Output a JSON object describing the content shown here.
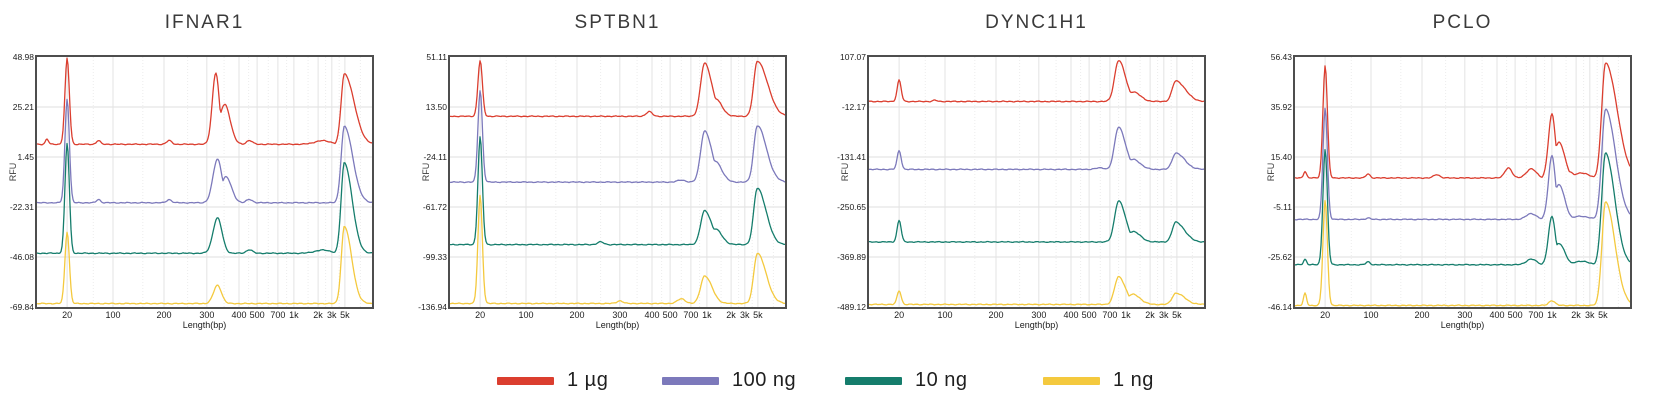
{
  "figure_background": "#ffffff",
  "legend": {
    "items": [
      {
        "label": "1 µg",
        "color": "#DB3E2F"
      },
      {
        "label": "100 ng",
        "color": "#7C79BB"
      },
      {
        "label": "10 ng",
        "color": "#157D6C"
      },
      {
        "label": "1 ng",
        "color": "#F4C93E"
      }
    ]
  },
  "x_axis": {
    "label": "Length(bp)",
    "tick_labels": [
      "20",
      "100",
      "200",
      "300",
      "400",
      "500",
      "700",
      "1k",
      "2k",
      "3k",
      "5k"
    ],
    "tick_bp": [
      20,
      100,
      200,
      300,
      400,
      500,
      700,
      1000,
      2000,
      3000,
      5000
    ],
    "scale_points": [
      [
        13,
        0
      ],
      [
        20,
        0.09
      ],
      [
        100,
        0.227
      ],
      [
        200,
        0.379
      ],
      [
        300,
        0.507
      ],
      [
        400,
        0.603
      ],
      [
        500,
        0.657
      ],
      [
        700,
        0.719
      ],
      [
        1000,
        0.767
      ],
      [
        2000,
        0.839
      ],
      [
        3000,
        0.88
      ],
      [
        5000,
        0.919
      ],
      [
        9000,
        1.0
      ]
    ],
    "minor_grid_bp": [
      50,
      150,
      250,
      350,
      450,
      600,
      850,
      1500,
      2500,
      4000,
      7000
    ]
  },
  "y_axis": {
    "label": "RFU"
  },
  "chart_data": [
    {
      "type": "line",
      "title": "IFNAR1",
      "xlabel": "Length(bp)",
      "ylabel": "RFU",
      "y_ticks": [
        48.98,
        25.21,
        1.45,
        -22.31,
        -46.08,
        -69.84
      ],
      "series": [
        {
          "name": "1 µg",
          "color": "#DB3E2F",
          "baseline": 7.5,
          "peaks_bp_rfu_sigma_tail": [
            [
              15,
              10,
              1.5
            ],
            [
              20,
              48.3,
              2.2
            ],
            [
              60,
              9.3,
              2
            ],
            [
              210,
              9.3,
              2.5
            ],
            [
              325,
              41.5,
              3.5
            ],
            [
              352,
              26.5,
              5.5
            ],
            [
              455,
              9.3,
              3
            ],
            [
              2300,
              9.2,
              8
            ],
            [
              4900,
              41,
              3.2,
              3
            ]
          ]
        },
        {
          "name": "100 ng",
          "color": "#7C79BB",
          "baseline": -20.3,
          "peaks_bp_rfu_sigma_tail": [
            [
              20,
              29,
              2.2
            ],
            [
              60,
              -18.7,
              2
            ],
            [
              210,
              -18.8,
              2.5
            ],
            [
              330,
              0.5,
              4.5
            ],
            [
              356,
              -8,
              5.5
            ],
            [
              455,
              -18.7,
              3
            ],
            [
              4900,
              16,
              3.2,
              2.6
            ]
          ]
        },
        {
          "name": "10 ng",
          "color": "#157D6C",
          "baseline": -44.3,
          "peaks_bp_rfu_sigma_tail": [
            [
              20,
              8,
              2.2
            ],
            [
              330,
              -27.5,
              4.5
            ],
            [
              455,
              -42.6,
              3
            ],
            [
              2300,
              -42.8,
              8
            ],
            [
              4900,
              -1.2,
              3.2,
              2.4
            ]
          ]
        },
        {
          "name": "1 ng",
          "color": "#F4C93E",
          "baseline": -68.2,
          "peaks_bp_rfu_sigma_tail": [
            [
              20,
              -34,
              2.2
            ],
            [
              330,
              -59.5,
              4
            ],
            [
              4900,
              -31.5,
              3,
              2.4
            ]
          ]
        }
      ]
    },
    {
      "type": "line",
      "title": "SPTBN1",
      "xlabel": "Length(bp)",
      "ylabel": "RFU",
      "y_ticks": [
        51.11,
        13.5,
        -24.11,
        -61.72,
        -99.33,
        -136.94
      ],
      "series": [
        {
          "name": "1 µg",
          "color": "#DB3E2F",
          "baseline": 6.5,
          "peaks_bp_rfu_sigma_tail": [
            [
              20,
              48.5,
              2.2
            ],
            [
              390,
              10,
              3
            ],
            [
              950,
              46.5,
              4,
              1.8
            ],
            [
              1260,
              20,
              6.5
            ],
            [
              4900,
              48,
              3.6,
              2.8
            ]
          ]
        },
        {
          "name": "100 ng",
          "color": "#7C79BB",
          "baseline": -43,
          "peaks_bp_rfu_sigma_tail": [
            [
              20,
              26,
              2.2
            ],
            [
              600,
              -41.5,
              4
            ],
            [
              950,
              -4.5,
              4,
              1.8
            ],
            [
              1260,
              -27,
              6.5
            ],
            [
              4900,
              -0.5,
              3.6,
              2.5
            ]
          ]
        },
        {
          "name": "10 ng",
          "color": "#157D6C",
          "baseline": -90,
          "peaks_bp_rfu_sigma_tail": [
            [
              20,
              -9,
              2.2
            ],
            [
              250,
              -88,
              3
            ],
            [
              950,
              -64.5,
              4,
              1.8
            ],
            [
              1260,
              -78,
              6.5
            ],
            [
              4900,
              -47.5,
              3.6,
              2.4
            ]
          ]
        },
        {
          "name": "1 ng",
          "color": "#F4C93E",
          "baseline": -134.3,
          "peaks_bp_rfu_sigma_tail": [
            [
              20,
              -53,
              2.2
            ],
            [
              300,
              -132.3,
              3
            ],
            [
              600,
              -130.8,
              4
            ],
            [
              950,
              -113.5,
              4,
              1.8
            ],
            [
              4900,
              -96.5,
              3.6,
              2.4
            ]
          ]
        }
      ]
    },
    {
      "type": "line",
      "title": "DYNC1H1",
      "xlabel": "Length(bp)",
      "ylabel": "RFU",
      "y_ticks": [
        107.07,
        -12.17,
        -131.41,
        -250.65,
        -369.89,
        -489.12
      ],
      "series": [
        {
          "name": "1 µg",
          "color": "#DB3E2F",
          "baseline": 1,
          "peaks_bp_rfu_sigma_tail": [
            [
              20,
              52,
              2
            ],
            [
              70,
              4,
              2
            ],
            [
              850,
              99,
              4,
              1.7
            ],
            [
              1230,
              24,
              7
            ],
            [
              4800,
              50,
              3.6,
              2.6
            ]
          ]
        },
        {
          "name": "100 ng",
          "color": "#7C79BB",
          "baseline": -161,
          "peaks_bp_rfu_sigma_tail": [
            [
              20,
              -116,
              2
            ],
            [
              600,
              -157.5,
              5
            ],
            [
              850,
              -60,
              4,
              1.7
            ],
            [
              1230,
              -137,
              7
            ],
            [
              4800,
              -122,
              3.6,
              2.4
            ]
          ]
        },
        {
          "name": "10 ng",
          "color": "#157D6C",
          "baseline": -334,
          "peaks_bp_rfu_sigma_tail": [
            [
              20,
              -282,
              2
            ],
            [
              850,
              -236,
              4,
              1.7
            ],
            [
              1230,
              -309,
              7
            ],
            [
              4800,
              -287,
              3.6,
              2.4
            ]
          ]
        },
        {
          "name": "1 ng",
          "color": "#F4C93E",
          "baseline": -483,
          "peaks_bp_rfu_sigma_tail": [
            [
              20,
              -450,
              2
            ],
            [
              850,
              -417,
              4,
              1.7
            ],
            [
              1230,
              -459,
              7
            ],
            [
              4800,
              -456,
              3.6,
              2.4
            ]
          ]
        }
      ]
    },
    {
      "type": "line",
      "title": "PCLO",
      "xlabel": "Length(bp)",
      "ylabel": "RFU",
      "y_ticks": [
        56.43,
        35.92,
        15.4,
        -5.11,
        -25.62,
        -46.14
      ],
      "series": [
        {
          "name": "1 µg",
          "color": "#DB3E2F",
          "baseline": 6.8,
          "peaks_bp_rfu_sigma_tail": [
            [
              15,
              9.5,
              1.5
            ],
            [
              20,
              53,
              2.2
            ],
            [
              90,
              8.5,
              2
            ],
            [
              230,
              8.2,
              3
            ],
            [
              460,
              11,
              3.5
            ],
            [
              650,
              10.5,
              5
            ],
            [
              1000,
              33,
              3.5
            ],
            [
              1230,
              21.5,
              5.5
            ],
            [
              1600,
              9.5,
              5
            ],
            [
              2300,
              8.8,
              8
            ],
            [
              5300,
              54,
              3.8,
              3
            ]
          ]
        },
        {
          "name": "100 ng",
          "color": "#7C79BB",
          "baseline": -10.2,
          "peaks_bp_rfu_sigma_tail": [
            [
              20,
              35.5,
              2.2
            ],
            [
              90,
              -9.6,
              2
            ],
            [
              650,
              -7.8,
              5
            ],
            [
              1000,
              16,
              3.5
            ],
            [
              1230,
              4,
              5.5
            ],
            [
              2300,
              -8.9,
              8
            ],
            [
              5300,
              35,
              3.8,
              2.6
            ]
          ]
        },
        {
          "name": "10 ng",
          "color": "#157D6C",
          "baseline": -28.8,
          "peaks_bp_rfu_sigma_tail": [
            [
              15,
              -26.5,
              1.5
            ],
            [
              20,
              18.5,
              2.2
            ],
            [
              90,
              -27.6,
              2
            ],
            [
              650,
              -26.5,
              5
            ],
            [
              1000,
              -9,
              3.5
            ],
            [
              1230,
              -20,
              5.5
            ],
            [
              2300,
              -27.4,
              8
            ],
            [
              5300,
              17,
              3.8,
              2.4
            ]
          ]
        },
        {
          "name": "1 ng",
          "color": "#F4C93E",
          "baseline": -45.5,
          "peaks_bp_rfu_sigma_tail": [
            [
              15,
              -40.5,
              1.5
            ],
            [
              20,
              -2.5,
              2.2
            ],
            [
              1000,
              -43.5,
              3
            ],
            [
              5300,
              -3,
              3.6,
              2.6
            ]
          ]
        }
      ]
    }
  ]
}
